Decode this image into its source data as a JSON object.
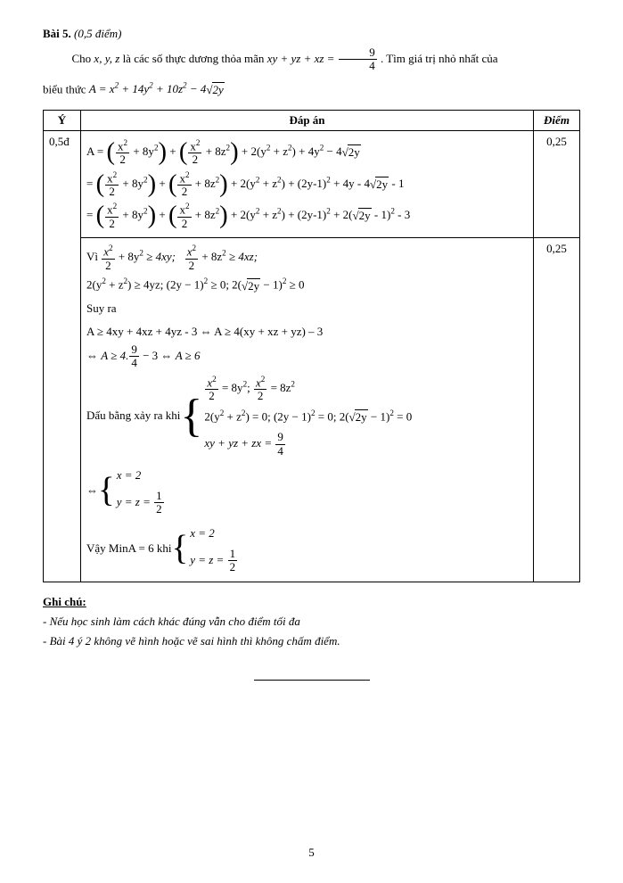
{
  "title_label": "Bài 5.",
  "title_points_label": "(0,5 điểm)",
  "intro_prefix": "Cho ",
  "intro_vars": "x, y, z",
  "intro_mid": " là các số thực dương thỏa mãn ",
  "intro_cond_lhs": "xy + yz + xz = ",
  "intro_cond_num": "9",
  "intro_cond_den": "4",
  "intro_suffix": ". Tìm giá trị nhỏ nhất của",
  "intro2_prefix": "biểu thức ",
  "intro2_expr_pre": "A = x",
  "intro2_expr_mid1": " + 14y",
  "intro2_expr_mid2": " + 10z",
  "intro2_expr_mid3": " − 4",
  "intro2_sqrt_rad": "2y",
  "th_y": "Ý",
  "th_ans": "Đáp án",
  "th_pt": "Điểm",
  "row_y": "0,5đ",
  "pt_1": "0,25",
  "pt_2": "0,25",
  "l1_pre": "A = ",
  "term1_num": "x",
  "term1_den": "2",
  "term1_rest_8y2": " + 8y",
  "plus": " + ",
  "term2_rest_8z2": " + 8z",
  "l1_tail1": " + 2",
  "l1_paren_yz": "y",
  "l1_paren_yz_plus": " + z",
  "l1_tail2": " + 4y",
  "l1_tail3": " − 4",
  "sqrt_2y": "2y",
  "l2_pre": "= ",
  "l2_tail_2y1": " + (2y-1)",
  "l2_tail_4y": " + 4y - 4",
  "l2_tail_m1": " - 1",
  "l3_tail_2y1sq": " + (2y-1)",
  "l3_tail_2rt": " + 2",
  "l3_rt_minus1": " - 1",
  "l3_tail_m3": " - 3",
  "vi": "Vì ",
  "vi_ge1": " + 8y",
  "ge": " ≥ ",
  "vi_4xy": "4xy;",
  "vi_ge2_rest": " + 8z",
  "vi_4xz": "4xz;",
  "ln_2yz": "2(y",
  "ln_2yz_zp": " + z",
  "ln_2yz_ge": ") ≥ 4yz;  (2y − 1)",
  "ln_ge0a": " ≥ 0;  2(",
  "ln_rt2y": "2y",
  "ln_m1sq": " − 1)",
  "ln_ge0b": " ≥ 0",
  "suyra": " Suy ra",
  "ln_A1": "A ≥ 4xy + 4xz + 4yz - 3 ⇔ A ≥ 4(xy + xz + yz) – 3",
  "ln_A2_pre": "⇔  ",
  "ln_A2_a": "A ≥ 4.",
  "ln_A2_num": "9",
  "ln_A2_den": "4",
  "ln_A2_b": " − 3 ⇔ ",
  "ln_A2_c": "A ≥ 6",
  "dau": "Dấu bằng xảy ra khi ",
  "br1_a_pre": "",
  "br1_a_num": "x",
  "br1_a_den": "2",
  "br1_a_eq8y2": " = 8y",
  "br1_a_sep": ";  ",
  "br1_a_eq8z2": " = 8z",
  "br1_b_pre": "2(y",
  "br1_b_mid": " + z",
  "br1_b_r1": ") = 0;  (2y − 1)",
  "br1_b_r2": " = 0;  2(",
  "br1_b_rt": "2y",
  "br1_b_r3": " − 1)",
  "br1_b_r4": " = 0",
  "br1_c_pre": "xy + yz + zx = ",
  "br1_c_num": "9",
  "br1_c_den": "4",
  "iff": "⇔ ",
  "br2_a": "x = 2",
  "br2_b_pre": "y = z = ",
  "br2_b_num": "1",
  "br2_b_den": "2",
  "vay_pre": "Vậy MinA = 6 khi ",
  "ghi": "Ghi chú:",
  "note1": "- Nếu học sinh làm cách khác đúng vẫn cho điểm tối đa",
  "note2": "- Bài 4 ý 2 không vẽ hình hoặc vẽ sai hình thì không chấm điểm.",
  "page": "5",
  "sq": "2"
}
